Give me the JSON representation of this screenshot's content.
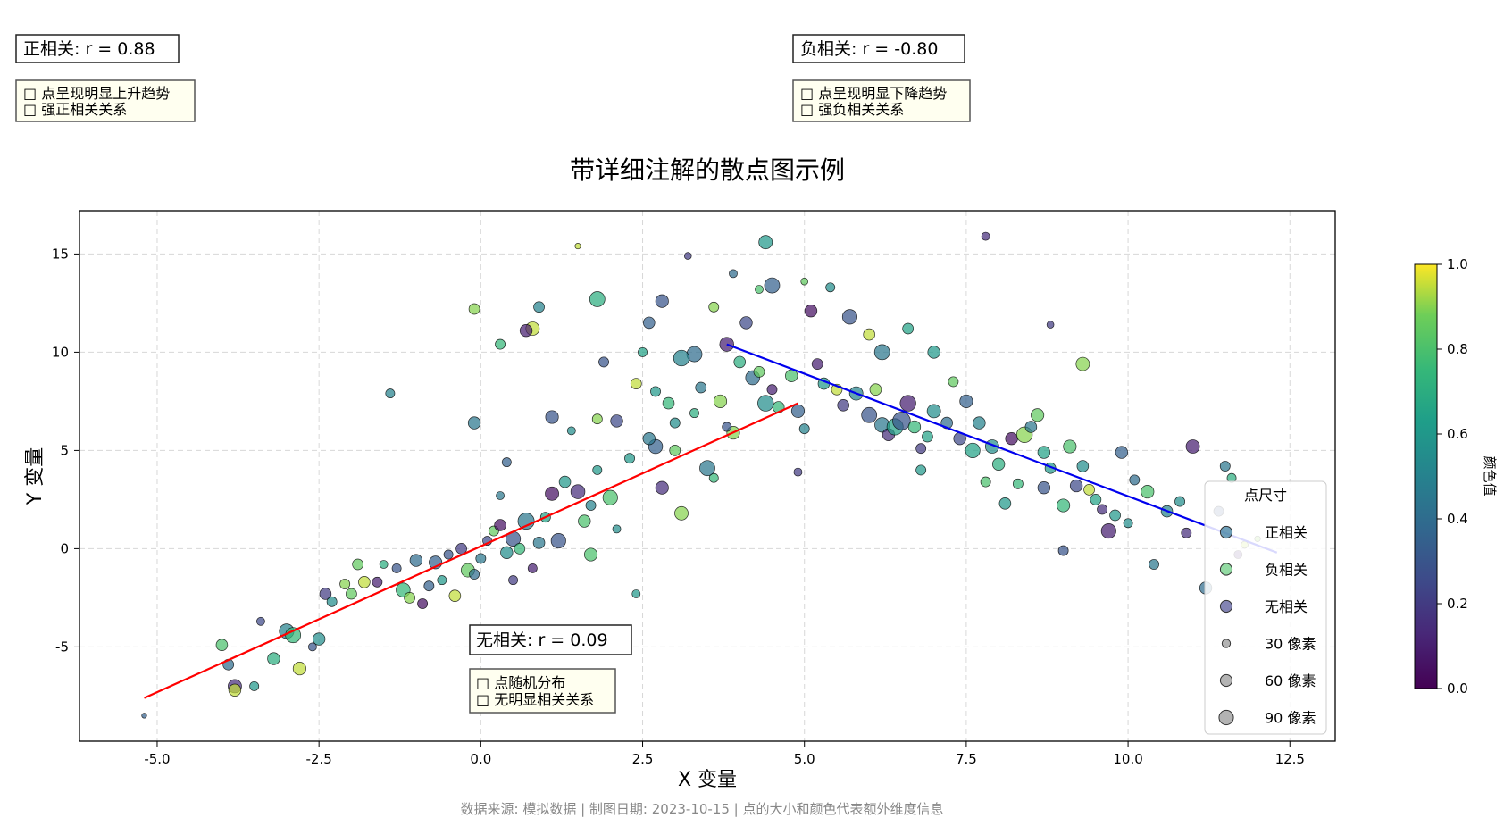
{
  "title": "带详细注解的散点图示例",
  "footer": "数据来源: 模拟数据 | 制图日期: 2023-10-15 | 点的大小和颜色代表额外维度信息",
  "annotations": {
    "positive": {
      "label": "正相关: r = 0.88",
      "notes": [
        "□ 点呈现明显上升趋势",
        "□ 强正相关关系"
      ]
    },
    "negative": {
      "label": "负相关: r = -0.80",
      "notes": [
        "□ 点呈现明显下降趋势",
        "□ 强负相关关系"
      ]
    },
    "none": {
      "label": "无相关: r = 0.09",
      "notes": [
        "□ 点随机分布",
        "□ 无明显相关关系"
      ]
    }
  },
  "legend": {
    "title": "点尺寸",
    "entries": [
      {
        "label": "正相关",
        "color": "#3e7fa0",
        "size": 60
      },
      {
        "label": "负相关",
        "color": "#6fcf84",
        "size": 60
      },
      {
        "label": "无相关",
        "color": "#5a5b9a",
        "size": 60
      },
      {
        "label": "30 像素",
        "color": "#999999",
        "size": 30
      },
      {
        "label": "60 像素",
        "color": "#999999",
        "size": 60
      },
      {
        "label": "90 像素",
        "color": "#999999",
        "size": 90
      }
    ]
  },
  "colorbar": {
    "label": "颜色值",
    "range": [
      0,
      1
    ],
    "ticks": [
      "0.0",
      "0.2",
      "0.4",
      "0.6",
      "0.8",
      "1.0"
    ],
    "colormap": "viridis"
  },
  "chart_data": {
    "type": "scatter",
    "xlabel": "X 变量",
    "ylabel": "Y 变量",
    "xlim": [
      -6.2,
      13.2
    ],
    "ylim": [
      -9.8,
      17.2
    ],
    "xticks": [
      "-5.0",
      "-2.5",
      "0.0",
      "2.5",
      "5.0",
      "7.5",
      "10.0",
      "12.5"
    ],
    "yticks": [
      "-5",
      "0",
      "5",
      "10",
      "15"
    ],
    "grid": true,
    "legend_position": "lower-right",
    "trendlines": [
      {
        "segment": "positive",
        "color": "#ff0000",
        "x": [
          -5.2,
          4.9
        ],
        "y": [
          -7.6,
          7.4
        ]
      },
      {
        "segment": "negative",
        "color": "#0000ee",
        "x": [
          3.8,
          12.3
        ],
        "y": [
          10.4,
          -0.2
        ]
      }
    ],
    "series": [
      {
        "segment": "positive",
        "points": [
          [
            -5.2,
            -8.5,
            0.35,
            15
          ],
          [
            -4.0,
            -4.9,
            0.8,
            80
          ],
          [
            -3.9,
            -5.9,
            0.4,
            70
          ],
          [
            -3.8,
            -7.0,
            0.15,
            110
          ],
          [
            -3.8,
            -7.2,
            0.95,
            90
          ],
          [
            -3.5,
            -7.0,
            0.6,
            50
          ],
          [
            -3.4,
            -3.7,
            0.25,
            40
          ],
          [
            -3.2,
            -5.6,
            0.7,
            90
          ],
          [
            -3.0,
            -4.2,
            0.5,
            130
          ],
          [
            -2.9,
            -4.4,
            0.75,
            140
          ],
          [
            -2.8,
            -6.1,
            0.95,
            100
          ],
          [
            -2.6,
            -5.0,
            0.3,
            40
          ],
          [
            -2.5,
            -4.6,
            0.55,
            90
          ],
          [
            -2.4,
            -2.3,
            0.2,
            80
          ],
          [
            -2.3,
            -2.7,
            0.55,
            60
          ],
          [
            -2.1,
            -1.8,
            0.9,
            60
          ],
          [
            -2.0,
            -2.3,
            0.85,
            70
          ],
          [
            -1.9,
            -0.8,
            0.85,
            70
          ],
          [
            -1.8,
            -1.7,
            0.95,
            80
          ],
          [
            -1.6,
            -1.7,
            0.1,
            60
          ],
          [
            -1.5,
            -0.8,
            0.7,
            40
          ],
          [
            -1.3,
            -1.0,
            0.3,
            50
          ],
          [
            -1.2,
            -2.1,
            0.75,
            120
          ],
          [
            -1.1,
            -2.5,
            0.9,
            70
          ],
          [
            -1.0,
            -0.6,
            0.4,
            90
          ],
          [
            -0.9,
            -2.8,
            0.05,
            60
          ],
          [
            -0.8,
            -1.9,
            0.35,
            60
          ],
          [
            -0.7,
            -0.7,
            0.35,
            100
          ],
          [
            -0.6,
            -1.6,
            0.6,
            50
          ],
          [
            -0.5,
            -0.3,
            0.3,
            50
          ],
          [
            -0.4,
            -2.4,
            0.95,
            80
          ],
          [
            -0.3,
            0.0,
            0.2,
            70
          ],
          [
            -0.2,
            -1.1,
            0.85,
            110
          ],
          [
            -0.1,
            -1.3,
            0.4,
            60
          ],
          [
            0.0,
            -0.5,
            0.45,
            60
          ],
          [
            0.1,
            0.4,
            0.25,
            50
          ],
          [
            0.2,
            0.9,
            0.85,
            60
          ],
          [
            0.3,
            1.2,
            0.05,
            80
          ],
          [
            0.4,
            -0.2,
            0.55,
            90
          ],
          [
            0.5,
            0.5,
            0.3,
            130
          ],
          [
            0.6,
            0.0,
            0.75,
            70
          ],
          [
            0.7,
            1.4,
            0.45,
            160
          ],
          [
            0.8,
            -1.0,
            0.1,
            50
          ],
          [
            0.9,
            0.3,
            0.45,
            80
          ],
          [
            1.0,
            1.6,
            0.65,
            60
          ],
          [
            1.1,
            2.8,
            0.05,
            110
          ],
          [
            1.2,
            0.4,
            0.3,
            130
          ],
          [
            1.3,
            3.4,
            0.6,
            80
          ],
          [
            1.5,
            2.9,
            0.15,
            120
          ],
          [
            1.6,
            1.4,
            0.8,
            90
          ],
          [
            1.7,
            2.2,
            0.5,
            60
          ],
          [
            1.8,
            4.0,
            0.6,
            50
          ],
          [
            2.0,
            2.6,
            0.8,
            130
          ],
          [
            2.1,
            1.0,
            0.55,
            40
          ],
          [
            -1.4,
            7.9,
            0.5,
            50
          ],
          [
            -0.1,
            6.4,
            0.45,
            90
          ],
          [
            -0.1,
            12.2,
            0.9,
            70
          ],
          [
            0.8,
            11.2,
            0.95,
            110
          ],
          [
            0.7,
            11.1,
            0.1,
            90
          ],
          [
            1.1,
            6.7,
            0.3,
            100
          ],
          [
            1.4,
            6.0,
            0.55,
            40
          ],
          [
            1.8,
            6.6,
            0.9,
            60
          ],
          [
            2.1,
            6.5,
            0.25,
            90
          ],
          [
            1.8,
            12.7,
            0.7,
            140
          ],
          [
            0.9,
            12.3,
            0.5,
            70
          ],
          [
            0.4,
            4.4,
            0.35,
            50
          ],
          [
            0.3,
            2.7,
            0.45,
            40
          ],
          [
            1.7,
            -0.3,
            0.8,
            100
          ],
          [
            0.5,
            -1.6,
            0.2,
            50
          ],
          [
            2.4,
            -2.3,
            0.6,
            40
          ],
          [
            2.8,
            3.1,
            0.15,
            100
          ],
          [
            3.1,
            1.8,
            0.9,
            110
          ],
          [
            3.6,
            3.6,
            0.75,
            50
          ],
          [
            3.0,
            5.0,
            0.85,
            70
          ],
          [
            2.7,
            5.2,
            0.35,
            120
          ],
          [
            2.3,
            4.6,
            0.6,
            60
          ],
          [
            0.3,
            10.4,
            0.75,
            60
          ],
          [
            1.5,
            15.4,
            0.95,
            20
          ],
          [
            1.9,
            9.5,
            0.3,
            60
          ],
          [
            3.3,
            9.9,
            0.4,
            140
          ]
        ]
      },
      {
        "segment": "negative",
        "points": [
          [
            3.8,
            10.4,
            0.1,
            120
          ],
          [
            4.0,
            9.5,
            0.7,
            80
          ],
          [
            4.2,
            8.7,
            0.4,
            120
          ],
          [
            4.3,
            9.0,
            0.85,
            70
          ],
          [
            4.4,
            7.4,
            0.55,
            150
          ],
          [
            4.5,
            8.1,
            0.1,
            60
          ],
          [
            4.6,
            7.2,
            0.75,
            80
          ],
          [
            4.8,
            8.8,
            0.8,
            90
          ],
          [
            4.9,
            7.0,
            0.35,
            100
          ],
          [
            5.0,
            6.1,
            0.5,
            60
          ],
          [
            5.2,
            9.4,
            0.1,
            70
          ],
          [
            5.3,
            8.4,
            0.6,
            80
          ],
          [
            5.5,
            8.1,
            0.95,
            70
          ],
          [
            5.6,
            7.3,
            0.2,
            80
          ],
          [
            5.8,
            7.9,
            0.5,
            110
          ],
          [
            6.0,
            6.8,
            0.3,
            140
          ],
          [
            6.1,
            8.1,
            0.9,
            80
          ],
          [
            6.2,
            6.3,
            0.45,
            130
          ],
          [
            6.3,
            5.8,
            0.15,
            90
          ],
          [
            6.4,
            6.2,
            0.65,
            160
          ],
          [
            6.5,
            6.5,
            0.3,
            190
          ],
          [
            6.6,
            7.4,
            0.1,
            150
          ],
          [
            6.7,
            6.2,
            0.75,
            90
          ],
          [
            6.8,
            5.1,
            0.2,
            60
          ],
          [
            6.9,
            5.7,
            0.65,
            70
          ],
          [
            7.0,
            7.0,
            0.55,
            110
          ],
          [
            7.2,
            6.4,
            0.4,
            80
          ],
          [
            7.3,
            8.5,
            0.85,
            60
          ],
          [
            7.4,
            5.6,
            0.25,
            90
          ],
          [
            7.5,
            7.5,
            0.35,
            100
          ],
          [
            7.6,
            5.0,
            0.65,
            130
          ],
          [
            7.7,
            6.4,
            0.5,
            90
          ],
          [
            7.8,
            3.4,
            0.8,
            60
          ],
          [
            7.9,
            5.2,
            0.55,
            110
          ],
          [
            8.0,
            4.3,
            0.7,
            90
          ],
          [
            8.1,
            2.3,
            0.6,
            80
          ],
          [
            8.2,
            5.6,
            0.05,
            90
          ],
          [
            8.3,
            3.3,
            0.75,
            60
          ],
          [
            8.4,
            5.8,
            0.9,
            150
          ],
          [
            8.5,
            6.2,
            0.45,
            80
          ],
          [
            8.6,
            6.8,
            0.85,
            100
          ],
          [
            8.7,
            3.1,
            0.3,
            90
          ],
          [
            8.8,
            4.1,
            0.6,
            70
          ],
          [
            9.0,
            2.2,
            0.75,
            100
          ],
          [
            9.1,
            5.2,
            0.8,
            100
          ],
          [
            9.2,
            3.2,
            0.25,
            90
          ],
          [
            9.3,
            4.2,
            0.55,
            80
          ],
          [
            9.4,
            3.0,
            0.95,
            70
          ],
          [
            9.5,
            2.5,
            0.65,
            70
          ],
          [
            9.6,
            2.0,
            0.15,
            60
          ],
          [
            9.7,
            0.9,
            0.1,
            130
          ],
          [
            9.8,
            1.7,
            0.6,
            70
          ],
          [
            9.9,
            4.9,
            0.35,
            90
          ],
          [
            10.1,
            3.5,
            0.4,
            60
          ],
          [
            10.3,
            2.9,
            0.8,
            100
          ],
          [
            10.4,
            -0.8,
            0.45,
            60
          ],
          [
            10.6,
            1.9,
            0.5,
            80
          ],
          [
            10.8,
            2.4,
            0.55,
            60
          ],
          [
            10.9,
            0.8,
            0.15,
            60
          ],
          [
            11.0,
            5.2,
            0.1,
            110
          ],
          [
            11.2,
            -2.0,
            0.4,
            90
          ],
          [
            11.4,
            1.9,
            0.3,
            60
          ],
          [
            11.6,
            3.6,
            0.7,
            50
          ],
          [
            11.5,
            4.2,
            0.45,
            60
          ],
          [
            11.8,
            0.2,
            0.95,
            30
          ],
          [
            4.4,
            15.6,
            0.6,
            110
          ],
          [
            4.5,
            13.4,
            0.35,
            140
          ],
          [
            5.0,
            13.6,
            0.85,
            30
          ],
          [
            5.4,
            13.3,
            0.55,
            50
          ],
          [
            5.7,
            11.8,
            0.3,
            130
          ],
          [
            6.0,
            10.9,
            0.95,
            80
          ],
          [
            6.2,
            10.0,
            0.45,
            140
          ],
          [
            6.6,
            11.2,
            0.65,
            70
          ],
          [
            7.0,
            10.0,
            0.6,
            90
          ],
          [
            7.8,
            15.9,
            0.15,
            40
          ],
          [
            8.8,
            11.4,
            0.2,
            30
          ],
          [
            9.3,
            9.4,
            0.9,
            110
          ],
          [
            5.1,
            12.1,
            0.05,
            90
          ],
          [
            4.9,
            3.9,
            0.2,
            40
          ],
          [
            6.8,
            4.0,
            0.6,
            60
          ],
          [
            9.0,
            -0.1,
            0.3,
            60
          ],
          [
            10.0,
            1.3,
            0.55,
            50
          ],
          [
            11.7,
            -0.3,
            0.1,
            40
          ],
          [
            12.0,
            0.5,
            0.9,
            20
          ],
          [
            8.7,
            4.9,
            0.65,
            90
          ]
        ]
      },
      {
        "segment": "none",
        "points": [
          [
            2.6,
            11.5,
            0.35,
            80
          ],
          [
            2.8,
            12.6,
            0.3,
            100
          ],
          [
            3.1,
            9.7,
            0.5,
            150
          ],
          [
            3.4,
            8.2,
            0.45,
            70
          ],
          [
            3.6,
            12.3,
            0.9,
            60
          ],
          [
            3.9,
            14.0,
            0.4,
            40
          ],
          [
            3.2,
            14.9,
            0.2,
            30
          ],
          [
            2.9,
            7.4,
            0.75,
            80
          ],
          [
            3.7,
            7.5,
            0.9,
            100
          ],
          [
            2.5,
            10.0,
            0.65,
            50
          ],
          [
            2.7,
            8.0,
            0.6,
            60
          ],
          [
            4.1,
            11.5,
            0.25,
            90
          ],
          [
            3.3,
            6.9,
            0.7,
            50
          ],
          [
            3.5,
            4.1,
            0.45,
            140
          ],
          [
            3.9,
            5.9,
            0.9,
            100
          ],
          [
            2.4,
            8.4,
            0.95,
            70
          ],
          [
            3.0,
            6.4,
            0.55,
            60
          ],
          [
            4.3,
            13.2,
            0.8,
            40
          ],
          [
            3.8,
            6.2,
            0.3,
            50
          ],
          [
            2.6,
            5.6,
            0.45,
            90
          ]
        ]
      }
    ]
  }
}
